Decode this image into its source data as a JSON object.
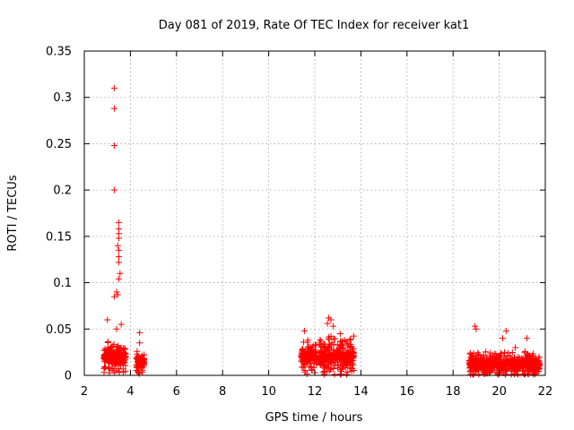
{
  "chart_data": {
    "type": "scatter",
    "title": "Day 081 of 2019, Rate Of TEC Index for receiver kat1",
    "xlabel": "GPS time / hours",
    "ylabel": "ROTI / TECUs",
    "xlim": [
      2,
      22
    ],
    "ylim": [
      0,
      0.35
    ],
    "xticks": [
      2,
      4,
      6,
      8,
      10,
      12,
      14,
      16,
      18,
      20,
      22
    ],
    "yticks": [
      0,
      0.05,
      0.1,
      0.15,
      0.2,
      0.25,
      0.3,
      0.35
    ],
    "ytick_labels": [
      "0",
      "0.05",
      "0.1",
      "0.15",
      "0.2",
      "0.25",
      "0.3",
      "0.35"
    ],
    "grid": true,
    "marker": "+",
    "color": "#ff0000",
    "clusters": [
      {
        "x_start": 2.85,
        "x_end": 3.8,
        "y_base": 0.02,
        "y_spread": 0.02
      },
      {
        "x_start": 4.25,
        "x_end": 4.6,
        "y_base": 0.015,
        "y_spread": 0.015
      },
      {
        "x_start": 11.4,
        "x_end": 12.1,
        "y_base": 0.02,
        "y_spread": 0.02
      },
      {
        "x_start": 12.2,
        "x_end": 13.7,
        "y_base": 0.02,
        "y_spread": 0.025
      },
      {
        "x_start": 18.7,
        "x_end": 21.75,
        "y_base": 0.012,
        "y_spread": 0.015
      }
    ],
    "notable_points": [
      [
        3.3,
        0.31
      ],
      [
        3.3,
        0.288
      ],
      [
        3.3,
        0.248
      ],
      [
        3.3,
        0.2
      ],
      [
        3.5,
        0.165
      ],
      [
        3.5,
        0.158
      ],
      [
        3.5,
        0.153
      ],
      [
        3.5,
        0.148
      ],
      [
        3.45,
        0.14
      ],
      [
        3.5,
        0.135
      ],
      [
        3.5,
        0.128
      ],
      [
        3.5,
        0.122
      ],
      [
        3.55,
        0.11
      ],
      [
        3.5,
        0.104
      ],
      [
        3.4,
        0.09
      ],
      [
        3.45,
        0.087
      ],
      [
        3.3,
        0.085
      ],
      [
        3.0,
        0.06
      ],
      [
        3.4,
        0.05
      ],
      [
        3.6,
        0.055
      ],
      [
        4.4,
        0.046
      ],
      [
        4.4,
        0.035
      ],
      [
        11.55,
        0.048
      ],
      [
        11.7,
        0.038
      ],
      [
        12.6,
        0.062
      ],
      [
        12.7,
        0.06
      ],
      [
        12.55,
        0.056
      ],
      [
        12.8,
        0.053
      ],
      [
        13.1,
        0.045
      ],
      [
        13.3,
        0.038
      ],
      [
        18.95,
        0.053
      ],
      [
        19.0,
        0.05
      ],
      [
        20.3,
        0.048
      ],
      [
        20.15,
        0.04
      ],
      [
        21.2,
        0.04
      ],
      [
        20.7,
        0.03
      ]
    ]
  }
}
